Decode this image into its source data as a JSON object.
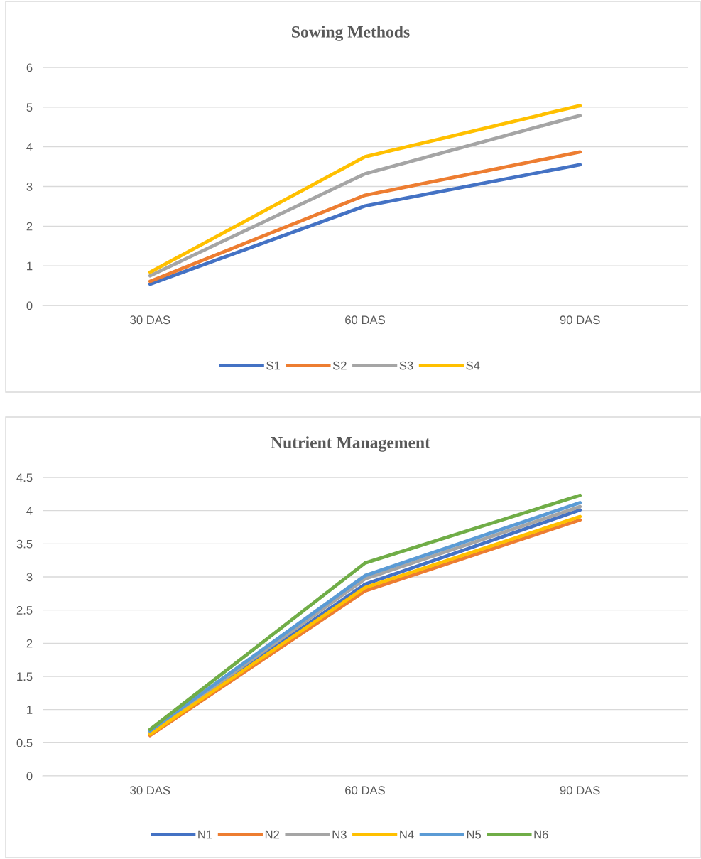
{
  "chart_data": [
    {
      "type": "line",
      "title": "Sowing Methods",
      "categories": [
        "30 DAS",
        "60 DAS",
        "90 DAS"
      ],
      "ylim": [
        0,
        6
      ],
      "yticks": [
        0,
        1,
        2,
        3,
        4,
        5,
        6
      ],
      "grid": "y",
      "legend": "bottom",
      "marker": "none",
      "line_style": "solid",
      "series": [
        {
          "name": "S1",
          "color": "#4472c4",
          "values": [
            0.54,
            2.51,
            3.55
          ]
        },
        {
          "name": "S2",
          "color": "#ed7d31",
          "values": [
            0.61,
            2.78,
            3.87
          ]
        },
        {
          "name": "S3",
          "color": "#a5a5a5",
          "values": [
            0.75,
            3.32,
            4.79
          ]
        },
        {
          "name": "S4",
          "color": "#ffc000",
          "values": [
            0.84,
            3.75,
            5.04
          ]
        }
      ]
    },
    {
      "type": "line",
      "title": "Nutrient Management",
      "categories": [
        "30 DAS",
        "60 DAS",
        "90 DAS"
      ],
      "ylim": [
        0,
        4.5
      ],
      "yticks": [
        0,
        0.5,
        1,
        1.5,
        2,
        2.5,
        3,
        3.5,
        4,
        4.5
      ],
      "grid": "y",
      "legend": "bottom",
      "marker": "none",
      "line_style": "solid",
      "series": [
        {
          "name": "N1",
          "color": "#4472c4",
          "values": [
            0.64,
            2.89,
            4.01
          ]
        },
        {
          "name": "N2",
          "color": "#ed7d31",
          "values": [
            0.61,
            2.79,
            3.86
          ]
        },
        {
          "name": "N3",
          "color": "#a5a5a5",
          "values": [
            0.66,
            2.97,
            4.06
          ]
        },
        {
          "name": "N4",
          "color": "#ffc000",
          "values": [
            0.63,
            2.84,
            3.91
          ]
        },
        {
          "name": "N5",
          "color": "#5b9bd5",
          "values": [
            0.68,
            3.02,
            4.12
          ]
        },
        {
          "name": "N6",
          "color": "#70ad47",
          "values": [
            0.7,
            3.21,
            4.23
          ]
        }
      ]
    }
  ]
}
